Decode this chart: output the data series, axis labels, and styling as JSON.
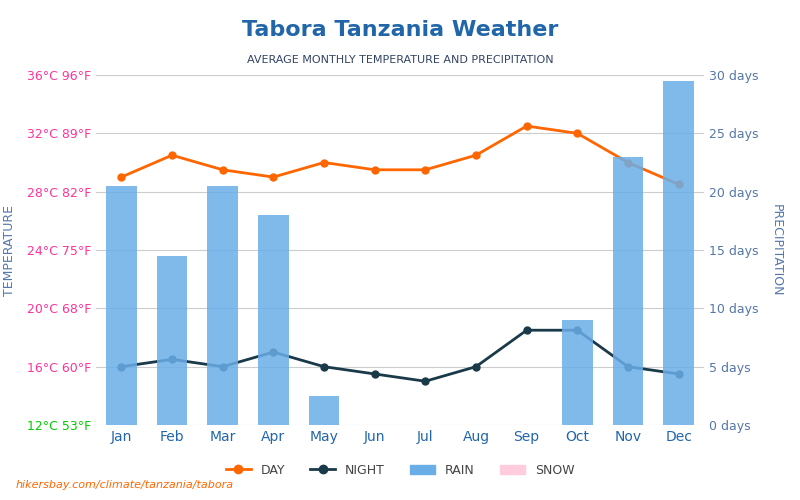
{
  "title": "Tabora Tanzania Weather",
  "subtitle": "AVERAGE MONTHLY TEMPERATURE AND PRECIPITATION",
  "months": [
    "Jan",
    "Feb",
    "Mar",
    "Apr",
    "May",
    "Jun",
    "Jul",
    "Aug",
    "Sep",
    "Oct",
    "Nov",
    "Dec"
  ],
  "day_temps": [
    29.0,
    30.5,
    29.5,
    29.0,
    30.0,
    29.5,
    29.5,
    30.5,
    32.5,
    32.0,
    30.0,
    28.5
  ],
  "night_temps": [
    16.0,
    16.5,
    16.0,
    17.0,
    16.0,
    15.5,
    15.0,
    16.0,
    18.5,
    18.5,
    16.0,
    15.5
  ],
  "rain_days": [
    20.5,
    14.5,
    20.5,
    18.0,
    2.5,
    0.0,
    0.0,
    0.0,
    0.0,
    9.0,
    23.0,
    29.5
  ],
  "snow_days": [
    0,
    0,
    0,
    0,
    0,
    0,
    0,
    0,
    0,
    0,
    0,
    0
  ],
  "temp_yticks_c": [
    12,
    16,
    20,
    24,
    28,
    32,
    36
  ],
  "temp_yticks_f": [
    53,
    60,
    68,
    75,
    82,
    89,
    96
  ],
  "temp_ytick_colors": [
    "#00cc00",
    "#ff3399",
    "#ff3399",
    "#ff3399",
    "#ff3399",
    "#ff3399",
    "#ff3399"
  ],
  "precip_yticks": [
    0,
    5,
    10,
    15,
    20,
    25,
    30
  ],
  "precip_ytick_labels": [
    "0 days",
    "5 days",
    "10 days",
    "15 days",
    "20 days",
    "25 days",
    "30 days"
  ],
  "bar_color": "#6aaee8",
  "day_line_color": "#ff6600",
  "night_line_color": "#1a3a4a",
  "title_color": "#2266aa",
  "subtitle_color": "#334466",
  "temp_label_color": "#5577aa",
  "precip_label_color": "#5577aa",
  "month_label_color": "#2266aa",
  "footer_text": "hikersbay.com/climate/tanzania/tabora",
  "background_color": "#ffffff",
  "grid_color": "#cccccc",
  "temp_min": 12,
  "temp_max": 36,
  "precip_min": 0,
  "precip_max": 30
}
